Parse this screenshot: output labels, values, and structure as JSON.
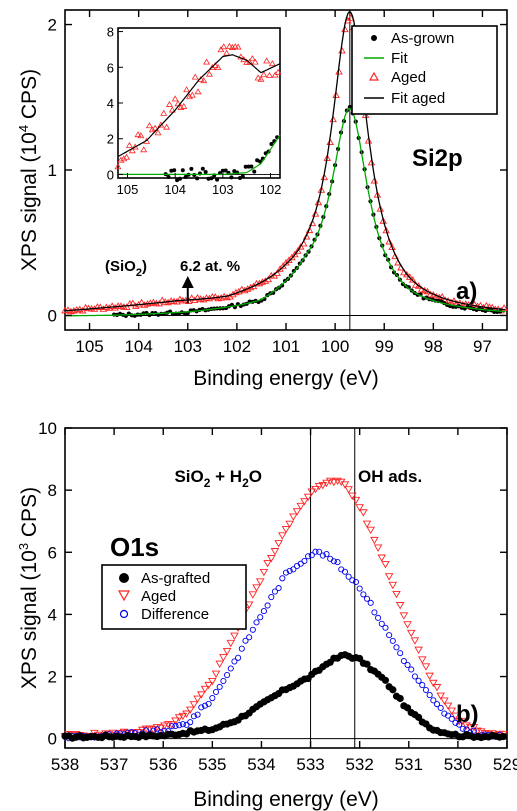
{
  "chart_data": [
    {
      "type": "scatter",
      "panel_label": "a)",
      "element_label": "Si2p",
      "xlabel": "Binding energy  (eV)",
      "ylabel_main": "XPS signal  (10",
      "ylabel_sup": "4",
      "ylabel_end": " CPS)",
      "xlim": [
        105.5,
        96.5
      ],
      "ylim": [
        -0.1,
        2.1
      ],
      "x_reversed": true,
      "xticks": [
        105,
        104,
        103,
        102,
        101,
        100,
        99,
        98,
        97
      ],
      "yticks": [
        0,
        1,
        2
      ],
      "vline": 99.7,
      "annotation": {
        "prefix": "(SiO",
        "sub": "2",
        "suffix": ")",
        "value": "6.2 at. %",
        "x": 103.0
      },
      "legend": [
        "As-grown",
        "Fit",
        "Aged",
        "Fit aged"
      ],
      "series": [
        {
          "name": "As-grown",
          "marker": "dot",
          "color": "#000000",
          "peak": {
            "center": 99.7,
            "height": 1.33,
            "width": 0.45
          },
          "baseline": [
            [
              104.5,
              -0.01
            ],
            [
              103,
              0.0
            ],
            [
              101.5,
              0.03
            ],
            [
              100.6,
              0.15
            ]
          ],
          "range": [
            104.5,
            96.6
          ]
        },
        {
          "name": "Fit",
          "marker": "line",
          "color": "#00aa00",
          "peak": {
            "center": 99.7,
            "height": 1.33,
            "width": 0.45
          }
        },
        {
          "name": "Aged",
          "marker": "triangle-up",
          "color": "#ff2222",
          "peak": {
            "center": 99.7,
            "height": 1.95,
            "width": 0.45
          },
          "baseline": [
            [
              105.5,
              0.02
            ],
            [
              103.2,
              0.07
            ],
            [
              102.2,
              0.07
            ],
            [
              101,
              0.14
            ]
          ],
          "range": [
            105.5,
            96.5
          ]
        },
        {
          "name": "Fit aged",
          "marker": "line",
          "color": "#000000",
          "peak": {
            "center": 99.7,
            "height": 2.0,
            "width": 0.45
          }
        }
      ],
      "inset": {
        "xlim": [
          105.2,
          101.8
        ],
        "ylim": [
          -0.2,
          8.2
        ],
        "xticks": [
          105,
          104,
          103,
          102
        ],
        "yticks": [
          0,
          2,
          4,
          6,
          8
        ],
        "aged_curve": [
          [
            105.2,
            1.0
          ],
          [
            104.6,
            1.9
          ],
          [
            104.0,
            3.6
          ],
          [
            103.5,
            5.3
          ],
          [
            103.0,
            6.6
          ],
          [
            102.8,
            6.7
          ],
          [
            102.5,
            6.4
          ],
          [
            102.2,
            5.7
          ],
          [
            101.8,
            6.2
          ]
        ],
        "asgrown_curve": [
          [
            105.2,
            0.0
          ],
          [
            103.0,
            0.0
          ],
          [
            102.5,
            0.1
          ],
          [
            102.2,
            0.6
          ],
          [
            101.8,
            2.2
          ]
        ]
      }
    },
    {
      "type": "scatter",
      "panel_label": "b)",
      "element_label": "O1s",
      "xlabel": "Binding energy  (eV)",
      "ylabel_main": "XPS signal  (10",
      "ylabel_sup": "3",
      "ylabel_end": " CPS)",
      "xlim": [
        538,
        529
      ],
      "ylim": [
        -0.3,
        10
      ],
      "x_reversed": true,
      "xticks": [
        538,
        537,
        536,
        535,
        534,
        533,
        532,
        531,
        530,
        529
      ],
      "yticks": [
        0,
        2,
        4,
        6,
        8,
        10
      ],
      "vlines": [
        533.0,
        532.1
      ],
      "region_labels": [
        {
          "prefix": "SiO",
          "sub": "2",
          "suffix": " + H",
          "sub2": "2",
          "suffix2": "O"
        },
        {
          "text": "OH ads."
        }
      ],
      "legend": [
        "As-grafted",
        "Aged",
        "Difference"
      ],
      "series": [
        {
          "name": "As-grafted",
          "marker": "filled-circle",
          "color": "#000000",
          "curve": [
            [
              538,
              0.05
            ],
            [
              536,
              0.1
            ],
            [
              535,
              0.3
            ],
            [
              534.5,
              0.6
            ],
            [
              534,
              1.1
            ],
            [
              533.5,
              1.6
            ],
            [
              533,
              2.0
            ],
            [
              532.6,
              2.5
            ],
            [
              532.3,
              2.7
            ],
            [
              532,
              2.55
            ],
            [
              531.5,
              1.9
            ],
            [
              531,
              0.9
            ],
            [
              530.5,
              0.3
            ],
            [
              530,
              0.1
            ],
            [
              529,
              0.05
            ]
          ]
        },
        {
          "name": "Aged",
          "marker": "triangle-down",
          "color": "#ff2222",
          "curve": [
            [
              538,
              0.1
            ],
            [
              537,
              0.15
            ],
            [
              536,
              0.35
            ],
            [
              535.5,
              0.8
            ],
            [
              535,
              1.9
            ],
            [
              534.5,
              3.5
            ],
            [
              534,
              5.2
            ],
            [
              533.5,
              6.8
            ],
            [
              533,
              7.9
            ],
            [
              532.6,
              8.35
            ],
            [
              532.3,
              8.2
            ],
            [
              532,
              7.5
            ],
            [
              531.5,
              5.7
            ],
            [
              531,
              3.6
            ],
            [
              530.5,
              1.8
            ],
            [
              530,
              0.6
            ],
            [
              529.5,
              0.2
            ],
            [
              529,
              0.1
            ]
          ]
        },
        {
          "name": "Difference",
          "marker": "open-circle",
          "color": "#0000ee",
          "curve": [
            [
              538,
              0.05
            ],
            [
              537,
              0.1
            ],
            [
              536,
              0.25
            ],
            [
              535.5,
              0.5
            ],
            [
              535,
              1.3
            ],
            [
              534.5,
              2.6
            ],
            [
              534,
              4.0
            ],
            [
              533.5,
              5.3
            ],
            [
              533,
              5.95
            ],
            [
              532.8,
              6.0
            ],
            [
              532.5,
              5.7
            ],
            [
              532,
              4.9
            ],
            [
              531.5,
              3.6
            ],
            [
              531,
              2.3
            ],
            [
              530.5,
              1.2
            ],
            [
              530,
              0.4
            ],
            [
              529.5,
              0.1
            ],
            [
              529,
              0.05
            ]
          ]
        }
      ]
    }
  ]
}
